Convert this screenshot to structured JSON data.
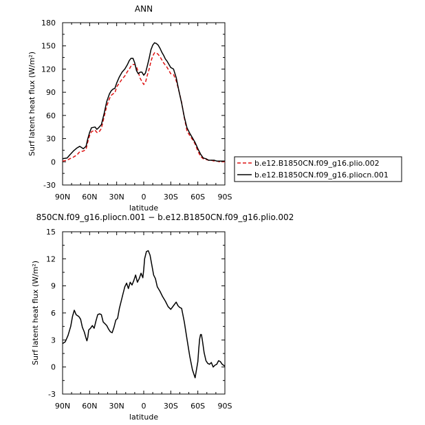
{
  "colors": {
    "red_series": "#dd1111",
    "black_series": "#000000",
    "axis": "#000000"
  },
  "chart_data": [
    {
      "type": "line",
      "title": "ANN",
      "xlabel": "latitude",
      "ylabel": "Surf latent heat flux (W/m²)",
      "xlim": [
        90,
        -90
      ],
      "ylim": [
        -30,
        180
      ],
      "x_ticks": [
        90,
        60,
        30,
        0,
        -30,
        -60,
        -90
      ],
      "x_tick_labels": [
        "90N",
        "60N",
        "30N",
        "0",
        "30S",
        "60S",
        "90S"
      ],
      "y_ticks": [
        -30,
        0,
        30,
        60,
        90,
        120,
        150,
        180
      ],
      "y_tick_labels": [
        "-30",
        "0",
        "30",
        "60",
        "90",
        "120",
        "150",
        "180"
      ],
      "x": [
        90,
        85,
        82,
        78,
        74,
        71,
        67,
        64,
        62,
        60,
        58,
        54,
        52,
        50,
        47,
        44,
        41,
        38,
        36,
        34,
        32,
        30,
        27,
        24,
        21,
        18,
        16,
        14,
        12,
        10,
        8,
        6,
        4,
        2,
        0,
        -2,
        -4,
        -6,
        -8,
        -10,
        -12,
        -14,
        -16,
        -18,
        -20,
        -22,
        -24,
        -26,
        -28,
        -30,
        -33,
        -36,
        -39,
        -42,
        -45,
        -48,
        -51,
        -54,
        -57,
        -60,
        -63,
        -66,
        -69,
        -72,
        -75,
        -78,
        -81,
        -84,
        -87,
        -90
      ],
      "series": [
        {
          "name": "b.e12.B1850CN.f09_g16.plio.002",
          "color": "#dd1111",
          "style": "dashed",
          "values": [
            1,
            2,
            4,
            6,
            9,
            13,
            14,
            16,
            26,
            34,
            39,
            41,
            38,
            38,
            43,
            58,
            72,
            82,
            86,
            88,
            89,
            97,
            102,
            107,
            111,
            117,
            120,
            124,
            126,
            126,
            123,
            116,
            108,
            104,
            100,
            103,
            112,
            120,
            130,
            137,
            141,
            141,
            139,
            136,
            132,
            128,
            125,
            122,
            118,
            114,
            113,
            105,
            92,
            77,
            57,
            40,
            34,
            29,
            23,
            14,
            7,
            4,
            3,
            2,
            2,
            1,
            1,
            0,
            0,
            0
          ]
        },
        {
          "name": "b.e12.B1850CN.f09_g16.pliocn.001",
          "color": "#000000",
          "style": "solid",
          "values": [
            4,
            5,
            9,
            14,
            18,
            20,
            17,
            20,
            30,
            38,
            44,
            45,
            42,
            44,
            48,
            62,
            78,
            88,
            92,
            94,
            95,
            102,
            110,
            116,
            120,
            126,
            131,
            134,
            134,
            128,
            118,
            114,
            116,
            116,
            112,
            115,
            124,
            134,
            145,
            151,
            154,
            153,
            151,
            147,
            142,
            138,
            133,
            130,
            126,
            122,
            120,
            109,
            92,
            76,
            58,
            44,
            37,
            31,
            25,
            17,
            10,
            5,
            4,
            2,
            2,
            2,
            1,
            1,
            1,
            1
          ]
        }
      ],
      "legend": {
        "position": "right",
        "entries": [
          "b.e12.B1850CN.f09_g16.plio.002",
          "b.e12.B1850CN.f09_g16.pliocn.001"
        ]
      }
    },
    {
      "type": "line",
      "title": "850CN.f09_g16.pliocn.001 − b.e12.B1850CN.f09_g16.plio.002",
      "xlabel": "latitude",
      "ylabel": "Surf latent heat flux (W/m²)",
      "xlim": [
        90,
        -90
      ],
      "ylim": [
        -3,
        15
      ],
      "x_ticks": [
        90,
        60,
        30,
        0,
        -30,
        -60,
        -90
      ],
      "x_tick_labels": [
        "90N",
        "60N",
        "30N",
        "0",
        "30S",
        "60S",
        "90S"
      ],
      "y_ticks": [
        -3,
        0,
        3,
        6,
        9,
        12,
        15
      ],
      "y_tick_labels": [
        "-3",
        "0",
        "3",
        "6",
        "9",
        "12",
        "15"
      ],
      "x": [
        90,
        87,
        84,
        81,
        79,
        77,
        75,
        72,
        70,
        68,
        66,
        64,
        63,
        62,
        61,
        59,
        57,
        55,
        53,
        51,
        49,
        47,
        45,
        43,
        41,
        39,
        37,
        35,
        33,
        31,
        29,
        27,
        25,
        23,
        21,
        19,
        17,
        15,
        13,
        11,
        9,
        7,
        5,
        3,
        1,
        0,
        -1,
        -3,
        -5,
        -7,
        -9,
        -11,
        -13,
        -15,
        -18,
        -21,
        -24,
        -27,
        -30,
        -33,
        -36,
        -38,
        -40,
        -42,
        -45,
        -48,
        -51,
        -54,
        -57,
        -60,
        -61,
        -62,
        -63,
        -64,
        -65,
        -67,
        -69,
        -71,
        -73,
        -75,
        -77,
        -79,
        -81,
        -83,
        -85,
        -87,
        -90
      ],
      "series": [
        {
          "name": "difference",
          "color": "#000000",
          "style": "solid",
          "values": [
            2.6,
            2.8,
            3.5,
            4.5,
            5.6,
            6.3,
            5.8,
            5.6,
            5.3,
            4.4,
            3.9,
            3.2,
            2.9,
            3.3,
            4.1,
            4.3,
            4.6,
            4.3,
            5.1,
            5.8,
            5.9,
            5.8,
            5.0,
            4.8,
            4.6,
            4.2,
            3.9,
            3.8,
            4.4,
            5.2,
            5.4,
            6.5,
            7.3,
            8.1,
            8.9,
            9.3,
            8.7,
            9.4,
            9.1,
            9.6,
            10.2,
            9.4,
            9.8,
            10.4,
            9.9,
            10.8,
            12.0,
            12.8,
            12.9,
            12.4,
            11.3,
            10.2,
            9.8,
            8.9,
            8.4,
            7.8,
            7.3,
            6.7,
            6.4,
            6.8,
            7.2,
            6.8,
            6.6,
            6.5,
            5.0,
            3.1,
            1.2,
            -0.3,
            -1.2,
            0.6,
            2.0,
            3.1,
            3.6,
            3.6,
            3.0,
            1.6,
            0.7,
            0.4,
            0.3,
            0.5,
            0.0,
            0.2,
            0.3,
            0.7,
            0.6,
            0.3,
            0.1
          ]
        }
      ]
    }
  ]
}
